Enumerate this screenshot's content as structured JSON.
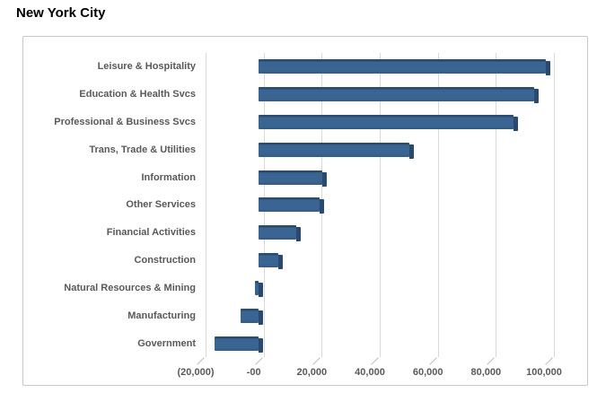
{
  "page": {
    "title": "New York City"
  },
  "chart_data": {
    "type": "bar",
    "orientation": "horizontal",
    "style": "3d-beveled-bars",
    "title": "New York City",
    "categories": [
      "Leisure & Hospitality",
      "Education & Health Svcs",
      "Professional & Business Svcs",
      "Trans, Trade & Utilities",
      "Information",
      "Other Services",
      "Financial Activities",
      "Construction",
      "Natural Resources & Mining",
      "Manufacturing",
      "Government"
    ],
    "values": [
      99000,
      95000,
      88000,
      52000,
      22000,
      21000,
      13000,
      7000,
      -1000,
      -6000,
      -15000
    ],
    "xlim": [
      -20000,
      100000
    ],
    "x_tick_values": [
      -20000,
      0,
      20000,
      40000,
      60000,
      80000,
      100000
    ],
    "x_tick_labels": [
      "(20,000)",
      "-00",
      "20,000",
      "40,000",
      "60,000",
      "80,000",
      "100,000"
    ],
    "grid": true,
    "legend": false,
    "colors": {
      "bar_face": "#3a6491",
      "bar_top": "#2b4c70",
      "bar_bottom": "#355a80",
      "bar_cap": "#294a6e",
      "gridline": "#d9d9d9",
      "tick": "#bdbdbd",
      "label": "#595959",
      "panel_border": "#c9c9c9"
    }
  }
}
